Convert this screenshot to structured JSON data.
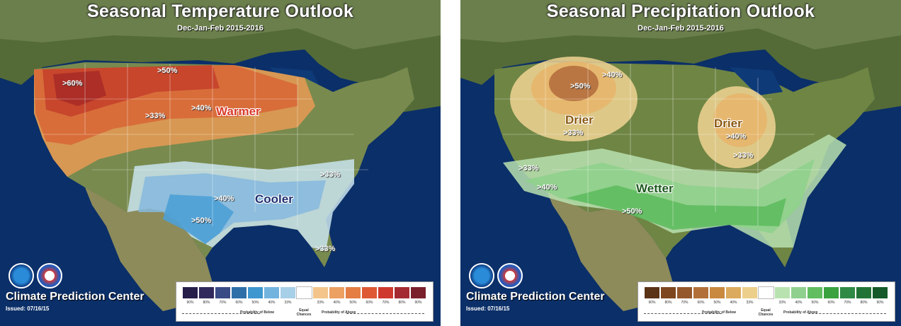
{
  "colors": {
    "ocean": "#0b2f68",
    "land": "#6b7d3f",
    "above_temp": [
      "#f2c27e",
      "#e89a55",
      "#d86536",
      "#c4402a",
      "#a92b27",
      "#8c2127",
      "#6d1a20"
    ],
    "below_temp": [
      "#c9e3ee",
      "#a6cfe6",
      "#86b9de",
      "#4da0d6",
      "#2e76b6",
      "#25508e",
      "#1a2c5c"
    ],
    "below_precip": [
      "#f1d393",
      "#e7b56c",
      "#d1904a",
      "#b46f3d",
      "#8e5130",
      "#6f3520",
      "#4d2215"
    ],
    "above_precip": [
      "#b8e0b0",
      "#8fd08c",
      "#5fbb5f",
      "#3a9f3f",
      "#2b8543",
      "#1e6c33",
      "#124f26"
    ],
    "legend_left_dark": [
      "#281e4a",
      "#302a5c",
      "#3a4c86",
      "#2e6fa8",
      "#3f97d0",
      "#73b4df",
      "#a7cfe8"
    ],
    "legend_warm": [
      "#f3c58a",
      "#eca061",
      "#e47e45",
      "#dd5a35",
      "#cf3a2e",
      "#a52b32",
      "#7a1f2c"
    ],
    "legend_precip_dry": [
      "#5a3216",
      "#7e4720",
      "#95582b",
      "#b27038",
      "#c9893f",
      "#dcaa5c",
      "#edcf8c"
    ],
    "legend_precip_wet": [
      "#b9e2b1",
      "#8fd08e",
      "#62bc60",
      "#3aa23f",
      "#2f8a45",
      "#227436",
      "#155a28"
    ]
  },
  "left": {
    "title": "Seasonal Temperature Outlook",
    "subtitle": "Dec-Jan-Feb 2015-2016",
    "labels": {
      "p60": ">60%",
      "p50a": ">50%",
      "p40a": ">40%",
      "p33a": ">33%",
      "warmer": "Warmer",
      "cooler": "Cooler",
      "p33b": ">33%",
      "p40b": ">40%",
      "p50b": ">50%",
      "p33c": ">33%"
    },
    "footer": {
      "center_name": "Climate Prediction Center",
      "issued": "Issued: 07/16/15"
    },
    "legend": {
      "percents": [
        "90%",
        "80%",
        "70%",
        "60%",
        "50%",
        "40%",
        "33%",
        "",
        "33%",
        "40%",
        "50%",
        "60%",
        "70%",
        "80%",
        "90%"
      ],
      "below_label": "Probability of Below",
      "equal_label": "Equal Chances",
      "above_label": "Probability of Above"
    }
  },
  "right": {
    "title": "Seasonal Precipitation Outlook",
    "subtitle": "Dec-Jan-Feb 2015-2016",
    "labels": {
      "p50": ">50%",
      "p40a": ">40%",
      "drier1": "Drier",
      "p33a": ">33%",
      "drier2": "Drier",
      "p40b": ">40%",
      "p33b": ">33%",
      "p33c": ">33%",
      "p40c": ">40%",
      "wetter": "Wetter",
      "p50b": ">50%"
    },
    "footer": {
      "center_name": "Climate Prediction Center",
      "issued": "Issued: 07/16/15"
    },
    "legend": {
      "percents": [
        "90%",
        "80%",
        "70%",
        "60%",
        "50%",
        "40%",
        "33%",
        "",
        "33%",
        "40%",
        "50%",
        "60%",
        "70%",
        "80%",
        "90%"
      ],
      "below_label": "Probability of Below",
      "equal_label": "Equal Chances",
      "above_label": "Probability of Above"
    }
  }
}
